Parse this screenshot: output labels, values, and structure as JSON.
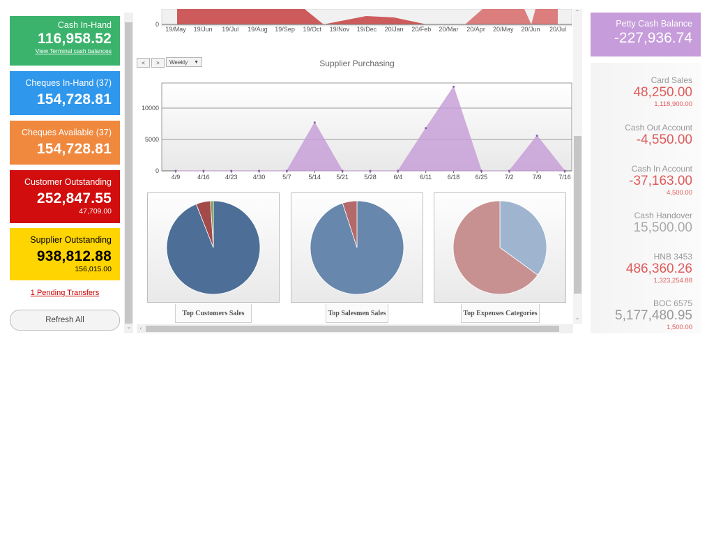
{
  "cards": {
    "cash_in_hand": {
      "title": "Cash In-Hand",
      "value": "116,958.52",
      "link": "View Terminal cash balances"
    },
    "cheques_in_hand": {
      "title": "Cheques In-Hand (37)",
      "value": "154,728.81"
    },
    "cheques_available": {
      "title": "Cheques Available (37)",
      "value": "154,728.81"
    },
    "customer_outstanding": {
      "title": "Customer Outstanding",
      "value": "252,847.55",
      "sub": "47,709.00"
    },
    "supplier_outstanding": {
      "title": "Supplier Outstanding",
      "value": "938,812.88",
      "sub": "156,015.00"
    }
  },
  "pending_transfers": "1 Pending Transfers",
  "refresh_label": "Refresh All",
  "top_chart": {
    "zero_label": "0",
    "x_labels": [
      "19/May",
      "19/Jun",
      "19/Jul",
      "19/Aug",
      "19/Sep",
      "19/Oct",
      "19/Nov",
      "19/Dec",
      "20/Jan",
      "20/Feb",
      "20/Mar",
      "20/Apr",
      "20/May",
      "20/Jun",
      "20/Jul"
    ]
  },
  "nav": {
    "prev": "<",
    "next": ">",
    "period": "Weekly"
  },
  "chart_data": {
    "type": "area",
    "title": "Supplier Purchasing",
    "categories": [
      "4/9",
      "4/16",
      "4/23",
      "4/30",
      "5/7",
      "5/14",
      "5/21",
      "5/28",
      "6/4",
      "6/11",
      "6/18",
      "6/25",
      "7/2",
      "7/9",
      "7/16"
    ],
    "values": [
      0,
      0,
      0,
      0,
      0,
      7700,
      0,
      0,
      0,
      6800,
      13400,
      0,
      0,
      5600,
      0
    ],
    "ylim": [
      0,
      14000
    ],
    "yticks": [
      0,
      5000,
      10000
    ],
    "color": "#c69cd8",
    "grid": true
  },
  "pies": [
    {
      "label": "Top Customers Sales",
      "slices": [
        {
          "v": 94,
          "c": "#4d6f97"
        },
        {
          "v": 5,
          "c": "#a34a4a"
        },
        {
          "v": 1,
          "c": "#7ea04f"
        }
      ]
    },
    {
      "label": "Top Salesmen Sales",
      "slices": [
        {
          "v": 95,
          "c": "#6787ac"
        },
        {
          "v": 5,
          "c": "#b46a6a"
        }
      ]
    },
    {
      "label": "Top Expenses Categories",
      "slices": [
        {
          "v": 35,
          "c": "#9fb5cf"
        },
        {
          "v": 65,
          "c": "#c79191"
        }
      ]
    }
  ],
  "petty_cash": {
    "title": "Petty Cash Balance",
    "value": "-227,936.74"
  },
  "accounts": [
    {
      "name": "Card Sales",
      "amount": "48,250.00",
      "sub": "1,118,900.00",
      "color": "#e05a5a"
    },
    {
      "name": "Cash Out Account",
      "amount": "-4,550.00",
      "sub": "",
      "color": "#e05a5a"
    },
    {
      "name": "Cash In Account",
      "amount": "-37,163.00",
      "sub": "4,500.00",
      "color": "#e05a5a"
    },
    {
      "name": "Cash Handover",
      "amount": "15,500.00",
      "sub": "",
      "color": "#aaaaaa"
    },
    {
      "name": "HNB 3453",
      "amount": "486,360.26",
      "sub": "1,323,254.88",
      "color": "#e05a5a"
    },
    {
      "name": "BOC 6575",
      "amount": "5,177,480.95",
      "sub": "1,500.00",
      "color": "#999999"
    }
  ]
}
